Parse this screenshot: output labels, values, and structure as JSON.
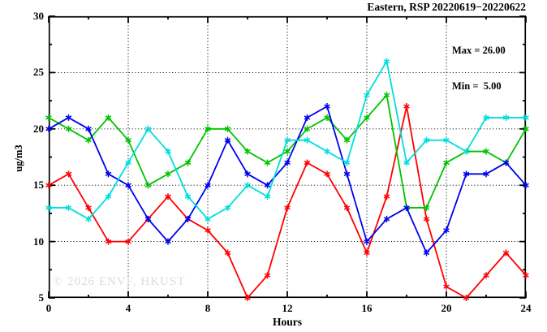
{
  "chart": {
    "title": "Eastern, RSP 20220619−20220622",
    "legend": {
      "max_label": "Max = 26.00",
      "min_label": "Min =  5.00"
    },
    "ylabel": "ug/m3",
    "xlabel": "Hours",
    "watermark": "© 2026 ENVF, HKUST"
  },
  "chart_data": {
    "type": "line",
    "title": "Eastern, RSP 20220619−20220622",
    "xlabel": "Hours",
    "ylabel": "ug/m3",
    "xlim": [
      0,
      24
    ],
    "ylim": [
      5,
      30
    ],
    "xticks": [
      0,
      4,
      8,
      12,
      16,
      20,
      24
    ],
    "yticks": [
      5,
      10,
      15,
      20,
      25,
      30
    ],
    "grid": true,
    "legend_position": "top-right-inside",
    "annotations": [
      "Max = 26.00",
      "Min =  5.00"
    ],
    "x": [
      0,
      1,
      2,
      3,
      4,
      5,
      6,
      7,
      8,
      9,
      10,
      11,
      12,
      13,
      14,
      15,
      16,
      17,
      18,
      19,
      20,
      21,
      22,
      23,
      24
    ],
    "series": [
      {
        "name": "series-red",
        "color": "#ff0000",
        "values": [
          15,
          16,
          13,
          10,
          10,
          12,
          14,
          12,
          11,
          9,
          5,
          7,
          13,
          17,
          16,
          13,
          9,
          14,
          22,
          12,
          6,
          5,
          7,
          9,
          7
        ]
      },
      {
        "name": "series-green",
        "color": "#00c400",
        "values": [
          21,
          20,
          19,
          21,
          19,
          15,
          16,
          17,
          20,
          20,
          18,
          17,
          18,
          20,
          21,
          19,
          21,
          23,
          13,
          13,
          17,
          18,
          18,
          17,
          20
        ]
      },
      {
        "name": "series-blue",
        "color": "#0000ee",
        "values": [
          20,
          21,
          20,
          16,
          15,
          12,
          10,
          12,
          15,
          19,
          16,
          15,
          17,
          21,
          22,
          16,
          10,
          12,
          13,
          9,
          11,
          16,
          16,
          17,
          15
        ]
      },
      {
        "name": "series-cyan",
        "color": "#00dede",
        "values": [
          13,
          13,
          12,
          14,
          17,
          20,
          18,
          14,
          12,
          13,
          15,
          14,
          19,
          19,
          18,
          17,
          23,
          26,
          17,
          19,
          19,
          18,
          21,
          21,
          21
        ]
      }
    ]
  }
}
